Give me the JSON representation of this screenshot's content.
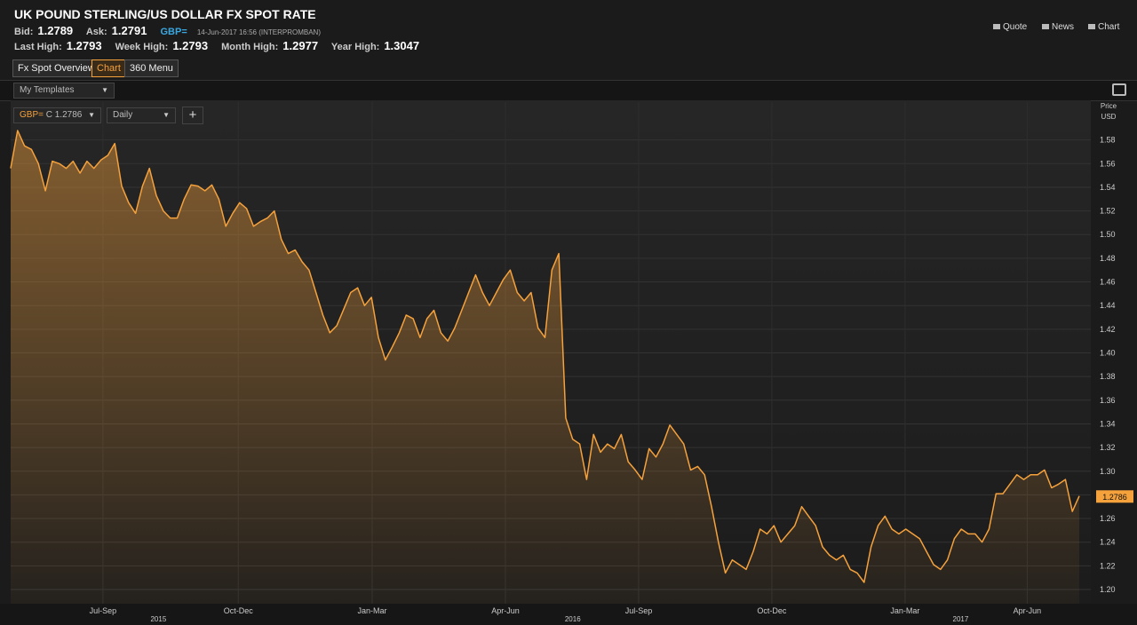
{
  "header": {
    "title": "UK POUND STERLING/US DOLLAR FX SPOT RATE",
    "quotes": [
      {
        "label": "Bid:",
        "value": 1.2789
      },
      {
        "label": "Ask:",
        "value": 1.2791
      }
    ],
    "ric": "GBP=",
    "timestamp": "14-Jun-2017 16:56 (INTERPROMBAN)",
    "highs": [
      {
        "label": "Last High:",
        "value": 1.2793
      },
      {
        "label": "Week High:",
        "value": 1.2793
      },
      {
        "label": "Month High:",
        "value": 1.2977
      },
      {
        "label": "Year High:",
        "value": 1.3047
      }
    ],
    "links": [
      "Quote",
      "News",
      "Chart"
    ]
  },
  "tabs": [
    "Fx Spot Overview",
    "Chart",
    "360 Menu"
  ],
  "templates": "My Templates",
  "chart_data": {
    "type": "line",
    "instrument": "GBP=",
    "instrument_field": "C 1.2786",
    "interval": "Daily",
    "axis_title": [
      "Price",
      "USD"
    ],
    "color": "#f5a13c",
    "values": [
      1.556,
      1.588,
      1.575,
      1.572,
      1.56,
      1.537,
      1.562,
      1.56,
      1.556,
      1.562,
      1.552,
      1.562,
      1.556,
      1.563,
      1.567,
      1.577,
      1.541,
      1.527,
      1.518,
      1.541,
      1.556,
      1.533,
      1.52,
      1.514,
      1.514,
      1.53,
      1.542,
      1.541,
      1.537,
      1.542,
      1.53,
      1.507,
      1.518,
      1.527,
      1.522,
      1.507,
      1.511,
      1.514,
      1.52,
      1.496,
      1.484,
      1.487,
      1.477,
      1.47,
      1.451,
      1.432,
      1.417,
      1.423,
      1.437,
      1.451,
      1.455,
      1.44,
      1.447,
      1.413,
      1.394,
      1.405,
      1.417,
      1.432,
      1.429,
      1.413,
      1.429,
      1.436,
      1.417,
      1.41,
      1.421,
      1.436,
      1.451,
      1.466,
      1.451,
      1.44,
      1.451,
      1.462,
      1.47,
      1.451,
      1.444,
      1.451,
      1.421,
      1.413,
      1.47,
      1.484,
      1.345,
      1.327,
      1.323,
      1.293,
      1.331,
      1.316,
      1.323,
      1.319,
      1.331,
      1.308,
      1.301,
      1.293,
      1.319,
      1.312,
      1.323,
      1.339,
      1.331,
      1.323,
      1.301,
      1.304,
      1.297,
      1.27,
      1.24,
      1.214,
      1.225,
      1.221,
      1.217,
      1.232,
      1.251,
      1.247,
      1.254,
      1.24,
      1.247,
      1.254,
      1.27,
      1.262,
      1.254,
      1.236,
      1.229,
      1.225,
      1.229,
      1.217,
      1.214,
      1.206,
      1.236,
      1.254,
      1.262,
      1.251,
      1.247,
      1.251,
      1.247,
      1.243,
      1.232,
      1.221,
      1.217,
      1.225,
      1.243,
      1.251,
      1.247,
      1.247,
      1.24,
      1.251,
      1.281,
      1.281,
      1.289,
      1.297,
      1.293,
      1.297,
      1.297,
      1.301,
      1.286,
      1.289,
      1.293,
      1.266,
      1.279
    ],
    "xlim": [
      0,
      154
    ],
    "xticks": [
      {
        "value": 13.3,
        "label": "Jul-Sep"
      },
      {
        "value": 32.8,
        "label": "Oct-Dec"
      },
      {
        "value": 52.1,
        "label": "Jan-Mar"
      },
      {
        "value": 71.3,
        "label": "Apr-Jun"
      },
      {
        "value": 90.5,
        "label": "Jul-Sep"
      },
      {
        "value": 109.7,
        "label": "Oct-Dec"
      },
      {
        "value": 128.9,
        "label": "Jan-Mar"
      },
      {
        "value": 146.5,
        "label": "Apr-Jun"
      }
    ],
    "year_ticks": [
      {
        "value": 21.3,
        "label": "2015"
      },
      {
        "value": 81,
        "label": "2016"
      },
      {
        "value": 136.9,
        "label": "2017"
      }
    ],
    "ylim": [
      1.188,
      1.612
    ],
    "yticks": [
      {
        "value": 1.2,
        "label": "1.20"
      },
      {
        "value": 1.22,
        "label": "1.22"
      },
      {
        "value": 1.24,
        "label": "1.24"
      },
      {
        "value": 1.26,
        "label": "1.26"
      },
      {
        "value": 1.28,
        "label": "1.28"
      },
      {
        "value": 1.3,
        "label": "1.30"
      },
      {
        "value": 1.32,
        "label": "1.32"
      },
      {
        "value": 1.34,
        "label": "1.34"
      },
      {
        "value": 1.36,
        "label": "1.36"
      },
      {
        "value": 1.38,
        "label": "1.38"
      },
      {
        "value": 1.4,
        "label": "1.40"
      },
      {
        "value": 1.42,
        "label": "1.42"
      },
      {
        "value": 1.44,
        "label": "1.44"
      },
      {
        "value": 1.46,
        "label": "1.46"
      },
      {
        "value": 1.48,
        "label": "1.48"
      },
      {
        "value": 1.5,
        "label": "1.50"
      },
      {
        "value": 1.52,
        "label": "1.52"
      },
      {
        "value": 1.54,
        "label": "1.54"
      },
      {
        "value": 1.56,
        "label": "1.56"
      },
      {
        "value": 1.58,
        "label": "1.58"
      }
    ],
    "grid": true,
    "last_value": 1.2786
  }
}
